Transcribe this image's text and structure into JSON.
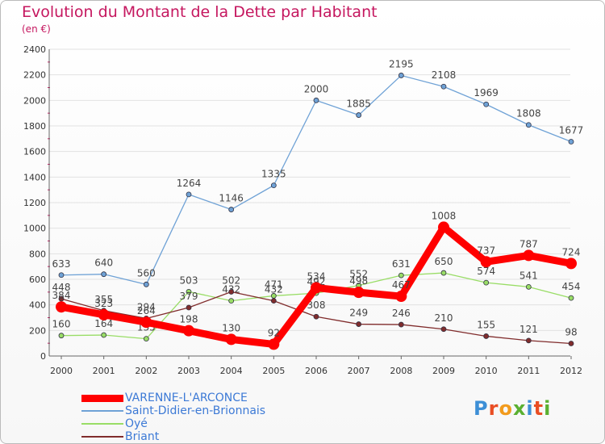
{
  "title": "Evolution du Montant de la Dette par Habitant",
  "subtitle": "(en €)",
  "logo_text": "Proxiti",
  "chart_data": {
    "type": "line",
    "title": "Evolution du Montant de la Dette par Habitant",
    "subtitle": "(en €)",
    "xlabel": "",
    "ylabel": "",
    "ylim": [
      0,
      2400
    ],
    "yticks": [
      0,
      200,
      400,
      600,
      800,
      1000,
      1200,
      1400,
      1600,
      1800,
      2000,
      2200,
      2400
    ],
    "x": [
      "2000",
      "2001",
      "2002",
      "2003",
      "2004",
      "2005",
      "2006",
      "2007",
      "2008",
      "2009",
      "2010",
      "2011",
      "2012"
    ],
    "grid": true,
    "legend_position": "bottom-left",
    "series": [
      {
        "name": "VARENNE-L'ARCONCE",
        "color": "#ff0000",
        "values": [
          384,
          323,
          264,
          198,
          130,
          92,
          534,
          498,
          467,
          1008,
          737,
          787,
          724
        ]
      },
      {
        "name": "Saint-Didier-en-Brionnais",
        "color": "#6fa2d6",
        "values": [
          633,
          640,
          560,
          1264,
          1146,
          1335,
          2000,
          1885,
          2195,
          2108,
          1969,
          1808,
          1677
        ]
      },
      {
        "name": "Oyé",
        "color": "#99dd66",
        "values": [
          160,
          164,
          135,
          503,
          432,
          471,
          492,
          552,
          631,
          650,
          574,
          541,
          454
        ]
      },
      {
        "name": "Briant",
        "color": "#802c2c",
        "values": [
          448,
          355,
          294,
          379,
          502,
          432,
          308,
          249,
          246,
          210,
          155,
          121,
          98
        ]
      }
    ]
  }
}
